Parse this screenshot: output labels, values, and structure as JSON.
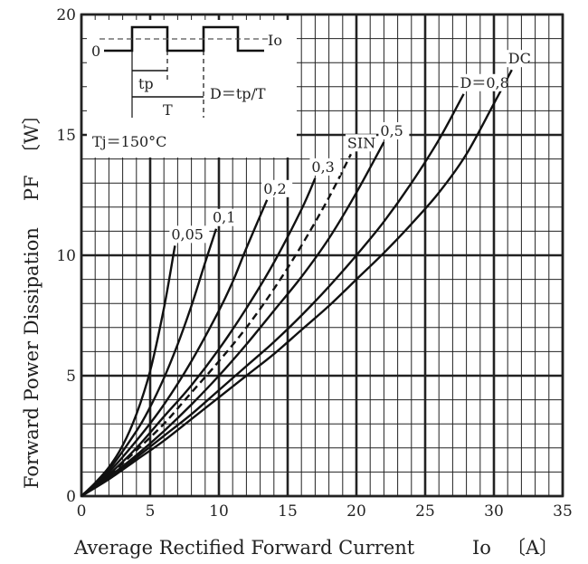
{
  "chart_data": {
    "type": "line",
    "xlabel": "Average Rectified Forward Current",
    "xlabel_symbol": "Io",
    "xlabel_unit": "〔A〕",
    "ylabel": "Forward Power Dissipation",
    "ylabel_symbol": "PF",
    "ylabel_unit": "〔W〕",
    "xlim": [
      0,
      35
    ],
    "ylim": [
      0,
      20
    ],
    "x_ticks": [
      0,
      5,
      10,
      15,
      20,
      25,
      30,
      35
    ],
    "y_ticks": [
      0,
      5,
      10,
      15,
      20
    ],
    "grid": true,
    "series": [
      {
        "name": "0.05",
        "label": "0,05",
        "style": "solid",
        "x": [
          0,
          1,
          2,
          3,
          4,
          5,
          6,
          6.8
        ],
        "y": [
          0,
          0.55,
          1.2,
          2.1,
          3.4,
          5.2,
          7.8,
          10.4
        ]
      },
      {
        "name": "0.1",
        "label": "0,1",
        "style": "solid",
        "x": [
          0,
          2,
          4,
          5,
          6,
          7,
          8,
          9,
          9.8
        ],
        "y": [
          0,
          1.1,
          2.7,
          3.7,
          4.9,
          6.3,
          7.9,
          9.7,
          11.1
        ]
      },
      {
        "name": "0.2",
        "label": "0,2",
        "style": "solid",
        "x": [
          0,
          2,
          4,
          6,
          8,
          10,
          11,
          12,
          13.5
        ],
        "y": [
          0,
          1.0,
          2.3,
          3.8,
          5.6,
          7.7,
          8.9,
          10.3,
          12.3
        ]
      },
      {
        "name": "0.3",
        "label": "0,3",
        "style": "solid",
        "x": [
          0,
          2,
          4,
          6,
          8,
          10,
          12,
          14,
          16,
          17
        ],
        "y": [
          0,
          0.9,
          2.0,
          3.3,
          4.6,
          6.1,
          7.8,
          9.7,
          11.9,
          13.2
        ]
      },
      {
        "name": "SIN",
        "label": "SIN",
        "style": "dashed",
        "x": [
          0,
          2,
          4,
          6,
          8,
          10,
          12,
          14,
          16,
          18,
          19.6
        ],
        "y": [
          0,
          0.85,
          1.9,
          3.0,
          4.3,
          5.6,
          7.0,
          8.6,
          10.4,
          12.4,
          14.2
        ]
      },
      {
        "name": "0.5",
        "label": "0,5",
        "style": "solid",
        "x": [
          0,
          2,
          4,
          6,
          8,
          10,
          12,
          14,
          16,
          18,
          20,
          22
        ],
        "y": [
          0,
          0.8,
          1.7,
          2.7,
          3.8,
          5.0,
          6.3,
          7.7,
          9.1,
          10.7,
          12.6,
          14.7
        ]
      },
      {
        "name": "0.8",
        "label": "D＝0,8",
        "style": "solid",
        "x": [
          0,
          2,
          4,
          6,
          8,
          10,
          12,
          14,
          16,
          18,
          20,
          22,
          24,
          26,
          27.8
        ],
        "y": [
          0,
          0.75,
          1.6,
          2.5,
          3.4,
          4.4,
          5.4,
          6.4,
          7.5,
          8.7,
          10.0,
          11.4,
          13.0,
          14.8,
          16.7
        ]
      },
      {
        "name": "DC",
        "label": "DC",
        "style": "solid",
        "x": [
          0,
          2,
          4,
          6,
          8,
          10,
          12,
          14,
          16,
          18,
          20,
          22,
          24,
          26,
          28,
          30,
          31.3
        ],
        "y": [
          0,
          0.7,
          1.5,
          2.3,
          3.2,
          4.1,
          5.0,
          5.9,
          6.9,
          7.9,
          9.0,
          10.1,
          11.3,
          12.6,
          14.2,
          16.3,
          17.7
        ]
      }
    ],
    "inset": {
      "zero_label": "0",
      "io_label": "Io",
      "tp_label": "tp",
      "t_label": "T",
      "duty_label": "D＝tp/T",
      "tj_label": "Tj＝150°C"
    }
  }
}
